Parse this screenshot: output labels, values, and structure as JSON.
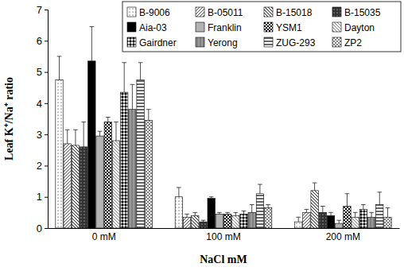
{
  "chart_data": {
    "type": "bar",
    "x_label": "NaCl mM",
    "y_label": "Leaf K⁺/Na⁺ ratio",
    "categories": [
      "0 mM",
      "100 mM",
      "200 mM"
    ],
    "ylim": [
      0,
      7
    ],
    "yticks": [
      0,
      1,
      2,
      3,
      4,
      5,
      6,
      7
    ],
    "grid": false,
    "legend": "top-right",
    "series": [
      {
        "name": "B-9006",
        "values": [
          4.75,
          1.0,
          0.2
        ],
        "errors": [
          0.75,
          0.3,
          0.15
        ]
      },
      {
        "name": "B-05011",
        "values": [
          2.7,
          0.35,
          0.5
        ],
        "errors": [
          0.45,
          0.1,
          0.1
        ]
      },
      {
        "name": "B-15018",
        "values": [
          2.65,
          0.4,
          1.2
        ],
        "errors": [
          0.5,
          0.1,
          0.25
        ]
      },
      {
        "name": "B-15035",
        "values": [
          2.6,
          0.2,
          0.5
        ],
        "errors": [
          0.8,
          0.05,
          0.2
        ]
      },
      {
        "name": "Aia-03",
        "values": [
          5.35,
          0.95,
          0.4
        ],
        "errors": [
          1.1,
          0.05,
          0.1
        ]
      },
      {
        "name": "Franklin",
        "values": [
          2.95,
          0.45,
          0.15
        ],
        "errors": [
          0.15,
          0.05,
          0.1
        ]
      },
      {
        "name": "YSM1",
        "values": [
          3.4,
          0.45,
          0.7
        ],
        "errors": [
          0.15,
          0.05,
          0.4
        ]
      },
      {
        "name": "Dayton",
        "values": [
          2.8,
          0.4,
          0.35
        ],
        "errors": [
          0.6,
          0.1,
          0.15
        ]
      },
      {
        "name": "Gairdner",
        "values": [
          4.35,
          0.45,
          0.6
        ],
        "errors": [
          0.95,
          0.1,
          0.15
        ]
      },
      {
        "name": "Yerong",
        "values": [
          3.8,
          0.5,
          0.35
        ],
        "errors": [
          0.8,
          0.25,
          0.15
        ]
      },
      {
        "name": "ZUG-293",
        "values": [
          4.75,
          1.1,
          0.75
        ],
        "errors": [
          0.55,
          0.3,
          0.4
        ]
      },
      {
        "name": "ZP2",
        "values": [
          3.45,
          0.65,
          0.35
        ],
        "errors": [
          0.35,
          0.1,
          0.3
        ]
      }
    ]
  }
}
